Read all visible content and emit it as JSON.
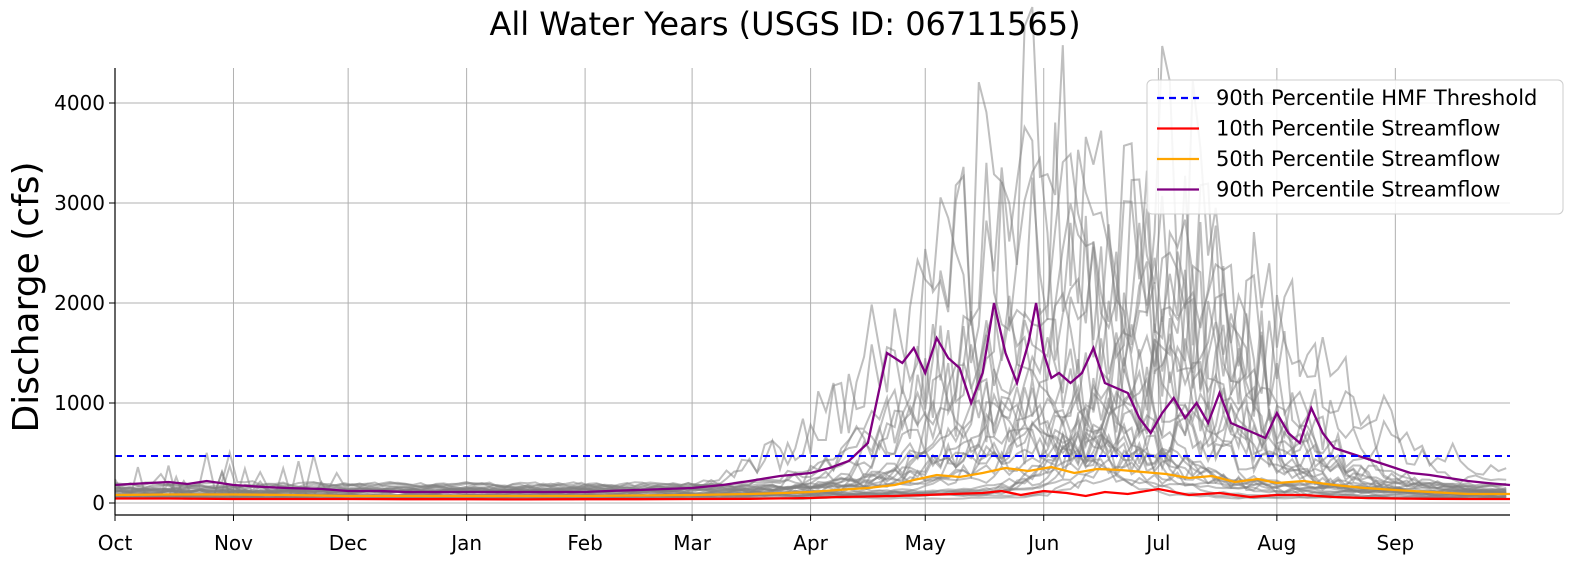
{
  "chart_data": {
    "type": "line",
    "title": "All Water Years (USGS ID: 06711565)",
    "xlabel": "",
    "ylabel": "Discharge (cfs)",
    "x_tick_labels": [
      "Oct",
      "Nov",
      "Dec",
      "Jan",
      "Feb",
      "Mar",
      "Apr",
      "May",
      "Jun",
      "Jul",
      "Aug",
      "Sep"
    ],
    "x_tick_day_of_water_year": [
      1,
      32,
      62,
      93,
      124,
      152,
      183,
      213,
      244,
      274,
      305,
      336
    ],
    "x_range_day_of_water_year": [
      1,
      366
    ],
    "y_ticks": [
      0,
      1000,
      2000,
      3000,
      4000
    ],
    "ylim": [
      -120,
      4350
    ],
    "grid": true,
    "legend_position": "top-right",
    "colors": {
      "hmf_threshold": "#0000ff",
      "p10": "#ff0000",
      "p50": "#ffa500",
      "p90": "#800080",
      "individual_years": "#808080"
    },
    "series": [
      {
        "name": "90th Percentile HMF Threshold",
        "style": "dashed",
        "color": "#0000ff",
        "x": [
          1,
          366
        ],
        "values": [
          470,
          470
        ]
      },
      {
        "name": "10th Percentile Streamflow",
        "color": "#ff0000",
        "x": [
          1,
          15,
          32,
          46,
          62,
          77,
          93,
          108,
          124,
          138,
          152,
          167,
          183,
          190,
          198,
          205,
          213,
          220,
          228,
          233,
          238,
          244,
          250,
          255,
          260,
          266,
          274,
          282,
          290,
          298,
          305,
          312,
          320,
          328,
          336,
          345,
          355,
          366
        ],
        "values": [
          45,
          45,
          40,
          40,
          40,
          38,
          38,
          36,
          38,
          38,
          40,
          42,
          50,
          60,
          65,
          70,
          80,
          90,
          100,
          120,
          80,
          120,
          100,
          70,
          110,
          90,
          140,
          80,
          100,
          60,
          80,
          80,
          60,
          50,
          45,
          42,
          40,
          40
        ]
      },
      {
        "name": "50th Percentile Streamflow",
        "color": "#ffa500",
        "x": [
          1,
          15,
          32,
          46,
          62,
          77,
          93,
          108,
          124,
          138,
          152,
          167,
          176,
          183,
          190,
          198,
          205,
          210,
          216,
          222,
          228,
          234,
          240,
          246,
          252,
          258,
          264,
          270,
          276,
          282,
          288,
          294,
          300,
          305,
          312,
          320,
          328,
          336,
          345,
          355,
          366
        ],
        "values": [
          80,
          85,
          85,
          80,
          70,
          70,
          70,
          70,
          70,
          75,
          80,
          90,
          100,
          110,
          130,
          150,
          180,
          230,
          280,
          260,
          300,
          350,
          320,
          360,
          300,
          340,
          330,
          310,
          290,
          250,
          270,
          210,
          240,
          200,
          220,
          180,
          150,
          130,
          110,
          90,
          90
        ]
      },
      {
        "name": "90th Percentile Streamflow",
        "color": "#800080",
        "x": [
          1,
          5,
          10,
          15,
          20,
          25,
          32,
          40,
          46,
          55,
          62,
          70,
          77,
          85,
          93,
          100,
          108,
          116,
          124,
          130,
          138,
          145,
          152,
          160,
          167,
          175,
          183,
          188,
          193,
          198,
          203,
          207,
          210,
          213,
          216,
          219,
          222,
          225,
          228,
          231,
          234,
          237,
          240,
          242,
          244,
          246,
          248,
          251,
          254,
          257,
          260,
          263,
          266,
          269,
          272,
          275,
          278,
          281,
          284,
          287,
          290,
          293,
          296,
          299,
          302,
          305,
          308,
          311,
          314,
          317,
          320,
          324,
          328,
          332,
          336,
          340,
          345,
          350,
          355,
          360,
          366
        ],
        "values": [
          180,
          190,
          200,
          210,
          190,
          220,
          180,
          160,
          150,
          140,
          120,
          120,
          110,
          110,
          110,
          110,
          110,
          110,
          110,
          120,
          130,
          140,
          150,
          180,
          220,
          270,
          300,
          350,
          420,
          600,
          1500,
          1400,
          1550,
          1300,
          1650,
          1450,
          1350,
          1000,
          1300,
          2000,
          1500,
          1200,
          1600,
          2000,
          1500,
          1250,
          1300,
          1200,
          1300,
          1550,
          1200,
          1150,
          1100,
          850,
          700,
          900,
          1050,
          850,
          1000,
          800,
          1100,
          800,
          750,
          700,
          650,
          900,
          700,
          600,
          950,
          700,
          550,
          500,
          450,
          400,
          350,
          300,
          280,
          250,
          220,
          200,
          180
        ]
      }
    ],
    "individual_years_count": 30,
    "individual_years_peak_range": [
      500,
      4150
    ]
  }
}
